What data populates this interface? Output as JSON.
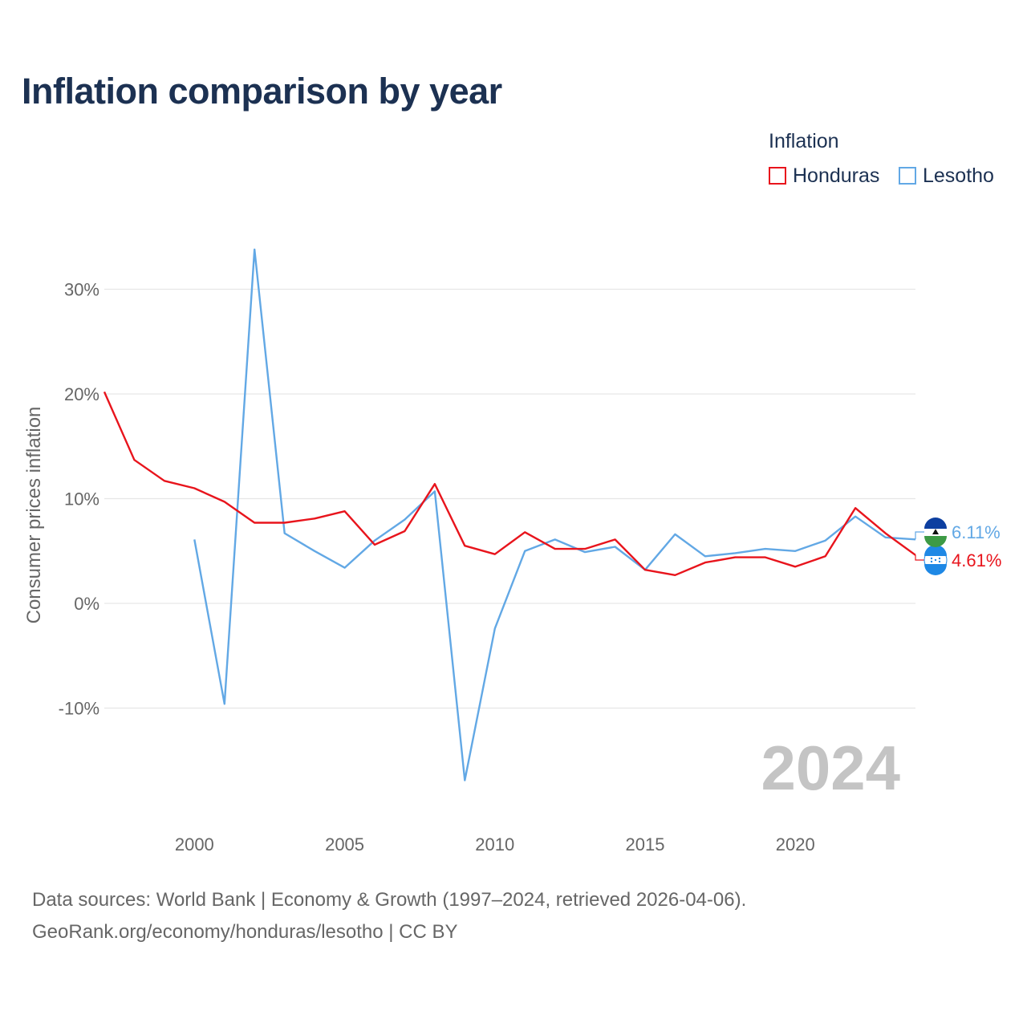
{
  "title": "Inflation comparison by year",
  "legend": {
    "title": "Inflation",
    "items": [
      {
        "label": "Honduras",
        "color": "#e8141c"
      },
      {
        "label": "Lesotho",
        "color": "#62a8e5"
      }
    ]
  },
  "footer": {
    "line1": "Data sources: World Bank | Economy & Growth (1997–2024, retrieved 2026-04-06).",
    "line2": "GeoRank.org/economy/honduras/lesotho | CC BY"
  },
  "chart_data": {
    "type": "line",
    "title": "Inflation comparison by year",
    "ylabel": "Consumer prices inflation",
    "xlabel": "",
    "xlim": [
      1997,
      2024
    ],
    "ylim": [
      -20,
      35
    ],
    "x_ticks": [
      2000,
      2005,
      2010,
      2015,
      2020
    ],
    "y_ticks": [
      {
        "value": -10,
        "label": "-10%"
      },
      {
        "value": 0,
        "label": "0%"
      },
      {
        "value": 10,
        "label": "10%"
      },
      {
        "value": 20,
        "label": "20%"
      },
      {
        "value": 30,
        "label": "30%"
      }
    ],
    "year_watermark": "2024",
    "series": [
      {
        "name": "Honduras",
        "color": "#e8141c",
        "end_label": "4.61%",
        "flag": "honduras-flag-icon",
        "x": [
          1997,
          1998,
          1999,
          2000,
          2001,
          2002,
          2003,
          2004,
          2005,
          2006,
          2007,
          2008,
          2009,
          2010,
          2011,
          2012,
          2013,
          2014,
          2015,
          2016,
          2017,
          2018,
          2019,
          2020,
          2021,
          2022,
          2023,
          2024
        ],
        "values": [
          20.2,
          13.7,
          11.7,
          11.0,
          9.7,
          7.7,
          7.7,
          8.1,
          8.8,
          5.6,
          6.9,
          11.4,
          5.5,
          4.7,
          6.8,
          5.2,
          5.2,
          6.1,
          3.2,
          2.7,
          3.9,
          4.4,
          4.4,
          3.5,
          4.5,
          9.1,
          6.7,
          4.61
        ]
      },
      {
        "name": "Lesotho",
        "color": "#62a8e5",
        "end_label": "6.11%",
        "flag": "lesotho-flag-icon",
        "x": [
          2000,
          2001,
          2002,
          2003,
          2004,
          2005,
          2006,
          2007,
          2008,
          2009,
          2010,
          2011,
          2012,
          2013,
          2014,
          2015,
          2016,
          2017,
          2018,
          2019,
          2020,
          2021,
          2022,
          2023,
          2024
        ],
        "values": [
          6.1,
          -9.6,
          33.8,
          6.7,
          5.0,
          3.4,
          6.0,
          8.0,
          10.7,
          -16.9,
          -2.4,
          5.0,
          6.1,
          4.9,
          5.4,
          3.2,
          6.6,
          4.5,
          4.8,
          5.2,
          5.0,
          6.0,
          8.3,
          6.3,
          6.11
        ]
      }
    ]
  }
}
